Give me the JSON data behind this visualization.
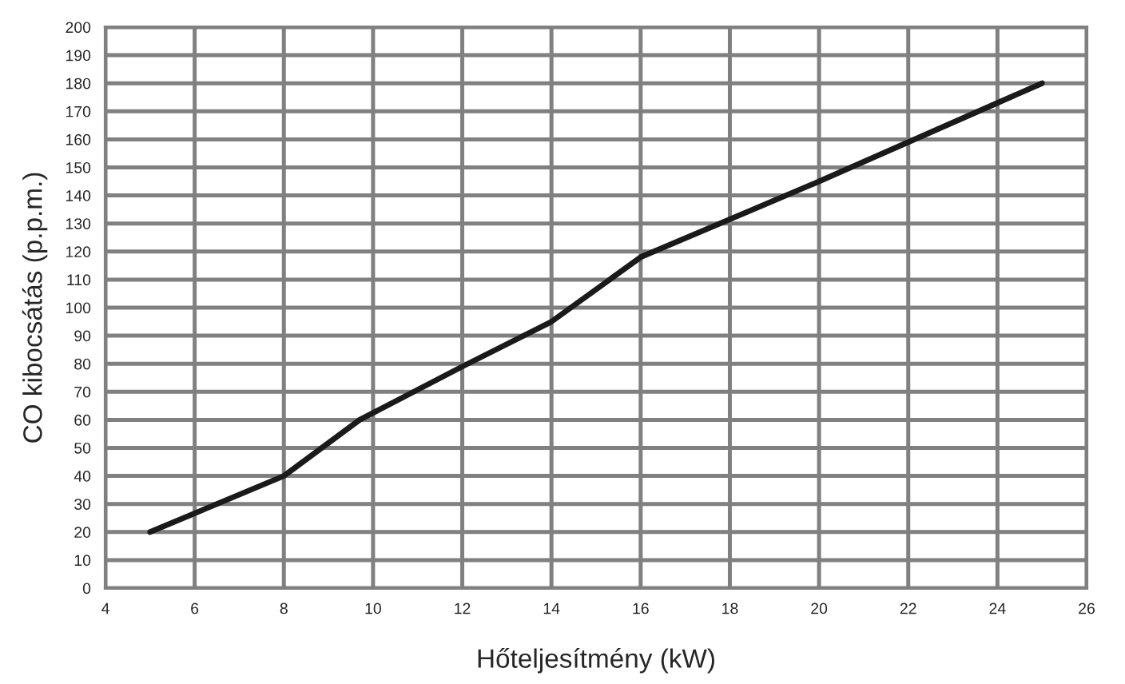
{
  "chart_data": {
    "type": "line",
    "xlabel": "Hőteljesítmény (kW)",
    "ylabel": "CO kibocsátás (p.p.m.)",
    "x": [
      5,
      8,
      9.7,
      12,
      14,
      16,
      20,
      25
    ],
    "series": [
      {
        "color": "#1a1a1a",
        "values": [
          20,
          40,
          60,
          79,
          95,
          118,
          145,
          180
        ]
      }
    ],
    "xlim": [
      4,
      26
    ],
    "xticks": [
      4,
      6,
      8,
      10,
      12,
      14,
      16,
      18,
      20,
      22,
      24,
      26
    ],
    "ylim": [
      0,
      200
    ],
    "yticks": [
      0,
      10,
      20,
      30,
      40,
      50,
      60,
      70,
      80,
      90,
      100,
      110,
      120,
      130,
      140,
      150,
      160,
      170,
      180,
      190,
      200
    ],
    "grid": true,
    "marker": "none",
    "line_style": "solid"
  }
}
